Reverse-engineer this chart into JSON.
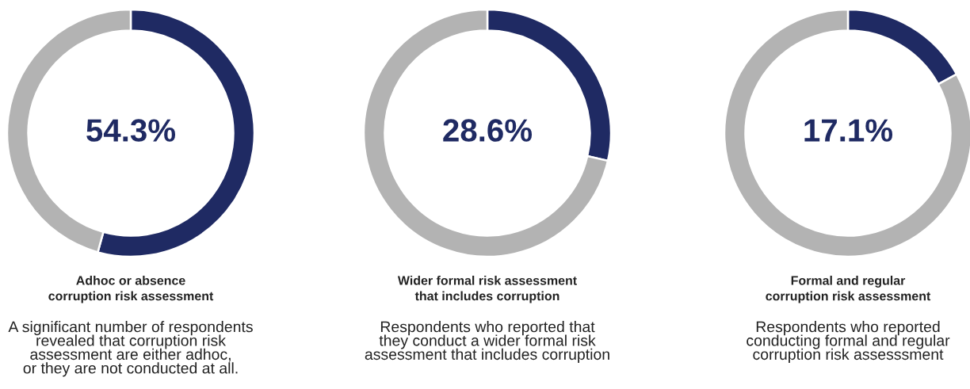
{
  "chart_data": [
    {
      "type": "donut",
      "title": "Adhoc or absence\ncorruption risk assessment",
      "categories": [
        null,
        null
      ],
      "values": [
        54.3,
        45.7
      ],
      "colors": [
        "#1f2a63",
        "#b3b3b3"
      ],
      "value_labels": [
        "54.3%",
        null
      ],
      "annotations": [
        "A significant number of respondents\nrevealed that corruption risk\nassessment are either adhoc,\nor they are not conducted at all."
      ]
    },
    {
      "type": "donut",
      "title": "Wider formal risk assessment\nthat includes corruption",
      "categories": [
        null,
        null
      ],
      "values": [
        28.6,
        71.4
      ],
      "colors": [
        "#1f2a63",
        "#b3b3b3"
      ],
      "value_labels": [
        "28.6%",
        null
      ],
      "annotations": [
        "Respondents who reported that\nthey conduct a wider formal risk\nassessment that includes corruption"
      ]
    },
    {
      "type": "donut",
      "title": "Formal and regular\ncorruption risk assessment",
      "categories": [
        null,
        null
      ],
      "values": [
        17.1,
        82.9
      ],
      "colors": [
        "#1f2a63",
        "#b3b3b3"
      ],
      "value_labels": [
        "17.1%",
        null
      ],
      "annotations": [
        "Respondents who reported\nconducting formal and regular\ncorruption risk assesssment"
      ]
    }
  ]
}
